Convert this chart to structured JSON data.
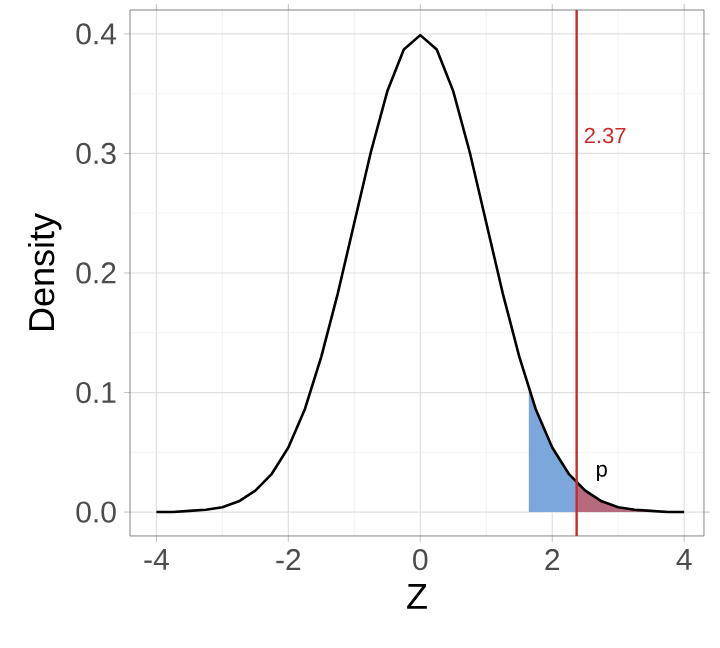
{
  "chart_data": {
    "type": "line",
    "xlabel": "Z",
    "ylabel": "Density",
    "xlim": [
      -4.4,
      4.3
    ],
    "ylim": [
      -0.02,
      0.42
    ],
    "xticks": [
      -4,
      -2,
      0,
      2,
      4
    ],
    "yticks": [
      {
        "value": 0,
        "label": "0.0"
      },
      0.1,
      0.2,
      0.3,
      0.4
    ],
    "grid": true,
    "marker": "none",
    "line_style": "solid",
    "series": [
      {
        "type": "area",
        "color": "#7ba7db",
        "x": [
          1.645,
          1.75,
          2,
          2.25,
          2.37
        ],
        "values": [
          0.103,
          0.086,
          0.054,
          0.032,
          0.024
        ]
      },
      {
        "type": "area",
        "color": "#b56a7e",
        "x": [
          2.37,
          2.5,
          2.75,
          3,
          3.25,
          3.5,
          4
        ],
        "values": [
          0.024,
          0.018,
          0.009,
          0.004,
          0.002,
          0.001,
          0.0
        ]
      },
      {
        "color": "#000000",
        "x": [
          -4,
          -3.75,
          -3.5,
          -3.25,
          -3,
          -2.75,
          -2.5,
          -2.25,
          -2,
          -1.75,
          -1.5,
          -1.25,
          -1,
          -0.75,
          -0.5,
          -0.25,
          0,
          0.25,
          0.5,
          0.75,
          1,
          1.25,
          1.5,
          1.75,
          2,
          2.25,
          2.5,
          2.75,
          3,
          3.25,
          3.5,
          3.75,
          4
        ],
        "values": [
          0.0,
          0.0,
          0.001,
          0.002,
          0.004,
          0.009,
          0.018,
          0.032,
          0.054,
          0.086,
          0.13,
          0.183,
          0.242,
          0.301,
          0.352,
          0.387,
          0.399,
          0.387,
          0.352,
          0.301,
          0.242,
          0.183,
          0.13,
          0.086,
          0.054,
          0.032,
          0.018,
          0.009,
          0.004,
          0.002,
          0.001,
          0.0,
          0.0
        ]
      }
    ],
    "ref_lines": [
      {
        "axis": "x",
        "value": 2.37,
        "label": "2.37",
        "color": "#cc2a2a"
      }
    ],
    "annotations": [
      {
        "text": "p",
        "x": 2.55,
        "y": 0.02
      }
    ]
  }
}
